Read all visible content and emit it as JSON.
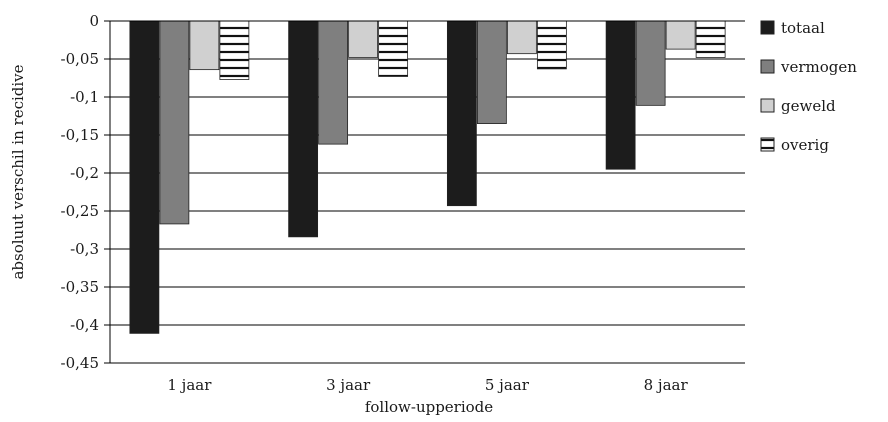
{
  "chart_data": {
    "type": "bar",
    "title": "",
    "xlabel": "follow-upperiode",
    "ylabel": "absoluut verschil in recidive",
    "categories": [
      "1 jaar",
      "3 jaar",
      "5 jaar",
      "8 jaar"
    ],
    "series": [
      {
        "name": "totaal",
        "values": [
          -0.411,
          -0.284,
          -0.243,
          -0.195
        ],
        "color": "#1c1c1c",
        "pattern": "solid"
      },
      {
        "name": "vermogen",
        "values": [
          -0.267,
          -0.162,
          -0.135,
          -0.111
        ],
        "color": "#7f7f7f",
        "pattern": "solid"
      },
      {
        "name": "geweld",
        "values": [
          -0.064,
          -0.048,
          -0.043,
          -0.037
        ],
        "color": "#d0d0d0",
        "pattern": "solid"
      },
      {
        "name": "overig",
        "values": [
          -0.077,
          -0.073,
          -0.063,
          -0.048
        ],
        "color": "#ffffff",
        "pattern": "horizontal-lines"
      }
    ],
    "ylim": [
      -0.45,
      0
    ],
    "yticks": [
      0,
      -0.05,
      -0.1,
      -0.15,
      -0.2,
      -0.25,
      -0.3,
      -0.35,
      -0.4,
      -0.45
    ],
    "ytick_labels": [
      "0",
      "-0,05",
      "-0,1",
      "-0,15",
      "-0,2",
      "-0,25",
      "-0,3",
      "-0,35",
      "-0,4",
      "-0,45"
    ],
    "grid": true,
    "legend_position": "right"
  }
}
